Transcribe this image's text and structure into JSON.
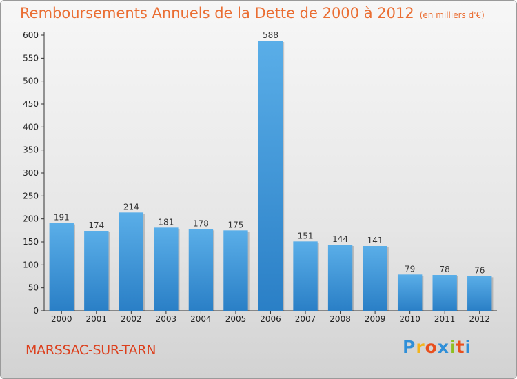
{
  "header": {
    "title": "Remboursements Annuels de la Dette de 2000 à 2012",
    "unit": "(en milliers d'€)"
  },
  "footer": {
    "commune": "MARSSAC-SUR-TARN",
    "brand": "Proxiti"
  },
  "colors": {
    "title": "#ea6e33",
    "bar_top": "#5aaee8",
    "bar_bottom": "#2a7fc6",
    "commune": "#dc3f1c"
  },
  "chart_data": {
    "type": "bar",
    "title": "Remboursements Annuels de la Dette de 2000 à 2012",
    "unit": "(en milliers d'€)",
    "categories": [
      "2000",
      "2001",
      "2002",
      "2003",
      "2004",
      "2005",
      "2006",
      "2007",
      "2008",
      "2009",
      "2010",
      "2011",
      "2012"
    ],
    "values": [
      191,
      174,
      214,
      181,
      178,
      175,
      588,
      151,
      144,
      141,
      79,
      78,
      76
    ],
    "ylim": [
      0,
      600
    ],
    "yticks": [
      0,
      50,
      100,
      150,
      200,
      250,
      300,
      350,
      400,
      450,
      500,
      550,
      600
    ],
    "grid": false,
    "legend": "none"
  }
}
